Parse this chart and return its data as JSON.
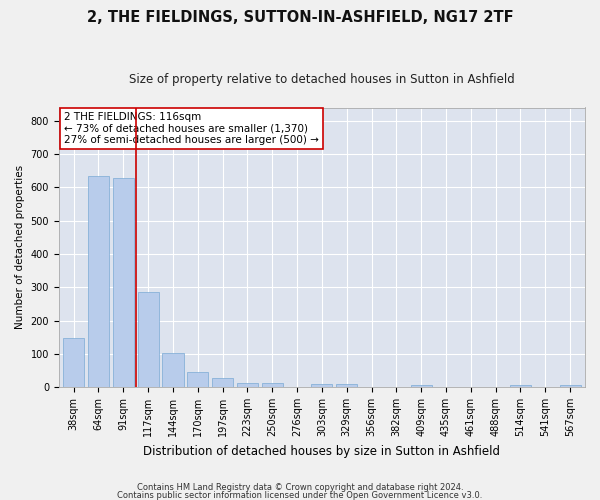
{
  "title": "2, THE FIELDINGS, SUTTON-IN-ASHFIELD, NG17 2TF",
  "subtitle": "Size of property relative to detached houses in Sutton in Ashfield",
  "xlabel": "Distribution of detached houses by size in Sutton in Ashfield",
  "ylabel": "Number of detached properties",
  "categories": [
    "38sqm",
    "64sqm",
    "91sqm",
    "117sqm",
    "144sqm",
    "170sqm",
    "197sqm",
    "223sqm",
    "250sqm",
    "276sqm",
    "303sqm",
    "329sqm",
    "356sqm",
    "382sqm",
    "409sqm",
    "435sqm",
    "461sqm",
    "488sqm",
    "514sqm",
    "541sqm",
    "567sqm"
  ],
  "values": [
    148,
    635,
    628,
    285,
    102,
    44,
    28,
    12,
    12,
    0,
    9,
    9,
    0,
    0,
    5,
    0,
    0,
    0,
    5,
    0,
    5
  ],
  "bar_color": "#b8cceb",
  "bar_edge_color": "#7aaad4",
  "background_color": "#dde3ee",
  "grid_color": "#ffffff",
  "fig_background": "#f0f0f0",
  "vline_color": "#cc0000",
  "vline_x": 2.5,
  "annotation_title": "2 THE FIELDINGS: 116sqm",
  "annotation_line1": "← 73% of detached houses are smaller (1,370)",
  "annotation_line2": "27% of semi-detached houses are larger (500) →",
  "annotation_box_color": "#ffffff",
  "annotation_box_edge": "#cc0000",
  "footer_line1": "Contains HM Land Registry data © Crown copyright and database right 2024.",
  "footer_line2": "Contains public sector information licensed under the Open Government Licence v3.0.",
  "ylim": [
    0,
    840
  ],
  "yticks": [
    0,
    100,
    200,
    300,
    400,
    500,
    600,
    700,
    800
  ],
  "title_fontsize": 10.5,
  "subtitle_fontsize": 8.5,
  "xlabel_fontsize": 8.5,
  "ylabel_fontsize": 7.5,
  "tick_fontsize": 7.0,
  "annotation_fontsize": 7.5,
  "footer_fontsize": 6.0
}
